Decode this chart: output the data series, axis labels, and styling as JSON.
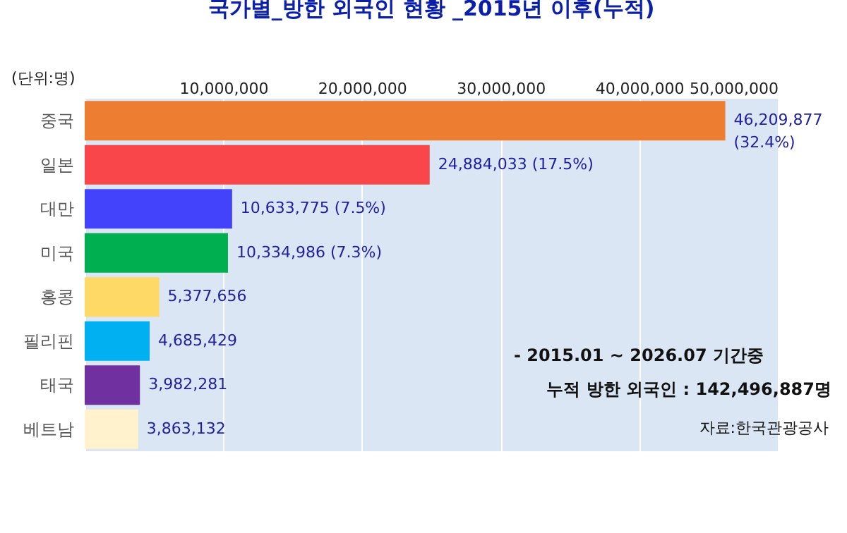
{
  "chart_data": {
    "type": "bar",
    "orientation": "horizontal",
    "title": "국가별_방한 외국인 현황 _2015년 이후(누적)",
    "xlabel": "(단위:명)",
    "categories": [
      "중국",
      "일본",
      "대만",
      "미국",
      "홍콩",
      "필리핀",
      "태국",
      "베트남"
    ],
    "values": [
      46209877,
      24884033,
      10633775,
      10334986,
      5377656,
      4685429,
      3982281,
      3863132
    ],
    "colors": [
      "#ed7d31",
      "#f8464b",
      "#4343fb",
      "#00b050",
      "#ffd966",
      "#00b0f0",
      "#7030a0",
      "#fff2cc"
    ],
    "value_labels": [
      "46,209,877\n(32.4%)",
      "24,884,033  (17.5%)",
      "10,633,775  (7.5%)",
      "10,334,986  (7.3%)",
      "5,377,656",
      "4,685,429",
      "3,982,281",
      "3,863,132"
    ],
    "xlim": [
      0,
      50000000
    ],
    "xticks": [
      {
        "value": 0,
        "label": null
      },
      {
        "value": 10000000,
        "label": "10,000,000"
      },
      {
        "value": 20000000,
        "label": "20,000,000"
      },
      {
        "value": 30000000,
        "label": "30,000,000"
      },
      {
        "value": 40000000,
        "label": "40,000,000"
      },
      {
        "value": 50000000,
        "label": "50,000,000"
      }
    ],
    "grid": "x",
    "annotations": [
      "- 2015.01 ~ 2026.07 기간중",
      "누적 방한 외국인  : 142,496,887명",
      "자료:한국관광공사"
    ]
  }
}
